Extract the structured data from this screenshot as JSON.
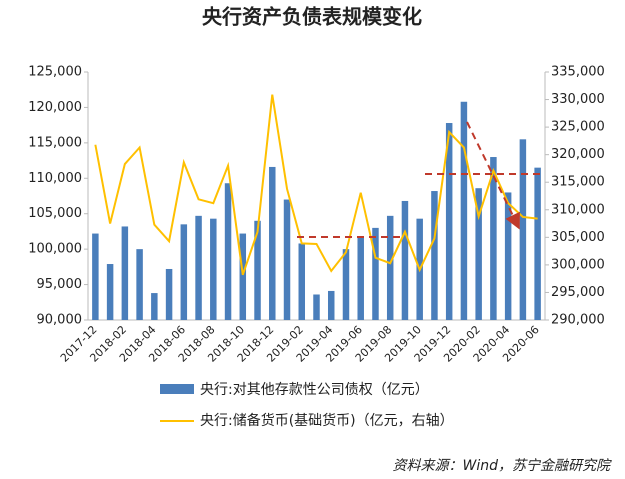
{
  "chart_data": {
    "type": "bar-line",
    "title": "央行资产负债表规模变化",
    "source": "资料来源：Wind，苏宁金融研究院",
    "categories": [
      "2017-12",
      null,
      "2018-02",
      null,
      "2018-04",
      null,
      "2018-06",
      null,
      "2018-08",
      null,
      "2018-10",
      null,
      "2018-12",
      null,
      "2019-02",
      null,
      "2019-04",
      null,
      "2019-06",
      null,
      "2019-08",
      null,
      "2019-10",
      null,
      "2019-12",
      null,
      "2020-02",
      null,
      "2020-04",
      null,
      "2020-06"
    ],
    "series": [
      {
        "name": "央行:对其他存款性公司债权（亿元）",
        "type": "bar",
        "color": "#4a7ebb",
        "axis": "y",
        "values": [
          102200,
          97900,
          103200,
          100000,
          93800,
          97200,
          103500,
          104700,
          104300,
          109300,
          102200,
          104000,
          111600,
          107000,
          100800,
          93600,
          94100,
          100000,
          101800,
          103000,
          104700,
          106800,
          104300,
          108200,
          117800,
          120800,
          108600,
          113000,
          108000,
          115500,
          111500
        ]
      },
      {
        "name": "央行:储备货币(基础货币)（亿元，右轴）",
        "type": "line",
        "color": "#ffc000",
        "axis": "y2",
        "values": [
          321800,
          307500,
          318300,
          321300,
          307300,
          304300,
          318600,
          311900,
          311200,
          318000,
          298200,
          306000,
          330900,
          313800,
          303900,
          303800,
          298900,
          302300,
          313100,
          301300,
          300300,
          306000,
          299100,
          304800,
          324100,
          321300,
          308800,
          317100,
          311200,
          308700,
          308400
        ]
      }
    ],
    "ylim": [
      90000,
      125000
    ],
    "yticks": [
      {
        "value": 90000,
        "label": "90,000"
      },
      {
        "value": 95000,
        "label": "95,000"
      },
      {
        "value": 100000,
        "label": "100,000"
      },
      {
        "value": 105000,
        "label": "105,000"
      },
      {
        "value": 110000,
        "label": "110,000"
      },
      {
        "value": 115000,
        "label": "115,000"
      },
      {
        "value": 120000,
        "label": "120,000"
      },
      {
        "value": 125000,
        "label": "125,000"
      }
    ],
    "y2lim": [
      290000,
      335000
    ],
    "y2ticks": [
      {
        "value": 290000,
        "label": "290,000"
      },
      {
        "value": 295000,
        "label": "295,000"
      },
      {
        "value": 300000,
        "label": "300,000"
      },
      {
        "value": 305000,
        "label": "305,000"
      },
      {
        "value": 310000,
        "label": "310,000"
      },
      {
        "value": 315000,
        "label": "315,000"
      },
      {
        "value": 320000,
        "label": "320,000"
      },
      {
        "value": 325000,
        "label": "325,000"
      },
      {
        "value": 330000,
        "label": "330,000"
      },
      {
        "value": 335000,
        "label": "335,000"
      }
    ]
  }
}
